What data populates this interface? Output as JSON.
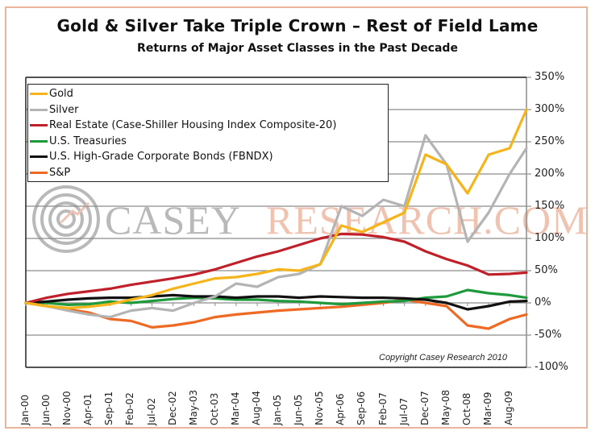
{
  "chart_data": {
    "type": "line",
    "title": "Gold & Silver Take Triple Crown – Rest of Field Lame",
    "subtitle": "Returns of Major Asset Classes in the Past Decade",
    "xlabel": "",
    "ylabel": "",
    "ylim": [
      -100,
      350
    ],
    "yticks": [
      "350%",
      "300%",
      "250%",
      "200%",
      "150%",
      "100%",
      "50%",
      "0%",
      "-50%",
      "-100%"
    ],
    "ytick_values": [
      350,
      300,
      250,
      200,
      150,
      100,
      50,
      0,
      -50,
      -100
    ],
    "x_tick_labels": [
      "Jan-00",
      "Jun-00",
      "Nov-00",
      "Apr-01",
      "Sep-01",
      "Feb-02",
      "Jul-02",
      "Dec-02",
      "May-03",
      "Oct-03",
      "Mar-04",
      "Aug-04",
      "Jan-05",
      "Jun-05",
      "Nov-05",
      "Apr-06",
      "Sep-06",
      "Feb-07",
      "Jul-07",
      "Dec-07",
      "May-08",
      "Oct-08",
      "Mar-09",
      "Aug-09"
    ],
    "x": [
      "Jan-00",
      "Jun-00",
      "Nov-00",
      "Apr-01",
      "Sep-01",
      "Feb-02",
      "Jul-02",
      "Dec-02",
      "May-03",
      "Oct-03",
      "Mar-04",
      "Aug-04",
      "Jan-05",
      "Jun-05",
      "Nov-05",
      "Apr-06",
      "Sep-06",
      "Feb-07",
      "Jul-07",
      "Dec-07",
      "May-08",
      "Oct-08",
      "Mar-09",
      "Aug-09",
      "Dec-09"
    ],
    "x_month_index": [
      0,
      5,
      10,
      15,
      20,
      25,
      30,
      35,
      40,
      45,
      50,
      55,
      60,
      65,
      70,
      75,
      80,
      85,
      90,
      95,
      100,
      105,
      110,
      115,
      119
    ],
    "grid": true,
    "legend_position": "top-left",
    "series": [
      {
        "name": "Gold",
        "color": "#f5b41a",
        "values": [
          0,
          -5,
          -8,
          -6,
          -2,
          5,
          12,
          22,
          30,
          38,
          40,
          45,
          52,
          50,
          60,
          120,
          110,
          125,
          140,
          230,
          215,
          170,
          230,
          240,
          300
        ]
      },
      {
        "name": "Silver",
        "color": "#b4b4b4",
        "values": [
          0,
          -5,
          -12,
          -18,
          -22,
          -12,
          -8,
          -12,
          0,
          10,
          30,
          25,
          40,
          45,
          60,
          150,
          135,
          160,
          150,
          260,
          215,
          95,
          140,
          200,
          240
        ]
      },
      {
        "name": "Real Estate (Case-Shiller Housing Index Composite-20)",
        "color": "#c0202a",
        "values": [
          0,
          8,
          14,
          18,
          22,
          28,
          33,
          38,
          44,
          52,
          62,
          72,
          80,
          90,
          100,
          107,
          106,
          102,
          95,
          80,
          68,
          58,
          44,
          45,
          47
        ]
      },
      {
        "name": "U.S. Treasuries",
        "color": "#1e9a3c",
        "values": [
          0,
          0,
          -3,
          -2,
          2,
          0,
          3,
          6,
          8,
          7,
          5,
          5,
          3,
          2,
          0,
          -2,
          0,
          2,
          3,
          8,
          10,
          20,
          15,
          12,
          8
        ]
      },
      {
        "name": "U.S. High-Grade Corporate Bonds (FBNDX)",
        "color": "#111111",
        "values": [
          0,
          2,
          5,
          7,
          8,
          8,
          10,
          12,
          10,
          10,
          8,
          10,
          10,
          8,
          10,
          9,
          8,
          8,
          7,
          5,
          0,
          -10,
          -5,
          2,
          3
        ]
      },
      {
        "name": "S&P",
        "color": "#ee6a24",
        "values": [
          0,
          -5,
          -10,
          -15,
          -25,
          -28,
          -38,
          -35,
          -30,
          -22,
          -18,
          -15,
          -12,
          -10,
          -8,
          -6,
          -3,
          0,
          5,
          0,
          -5,
          -35,
          -40,
          -25,
          -18
        ]
      }
    ],
    "copyright": "Copyright Casey Research 2010"
  },
  "watermark": {
    "part1": "CASEY",
    "part2": "RESEARCH.COM"
  },
  "frame_color": "#e9b49a"
}
